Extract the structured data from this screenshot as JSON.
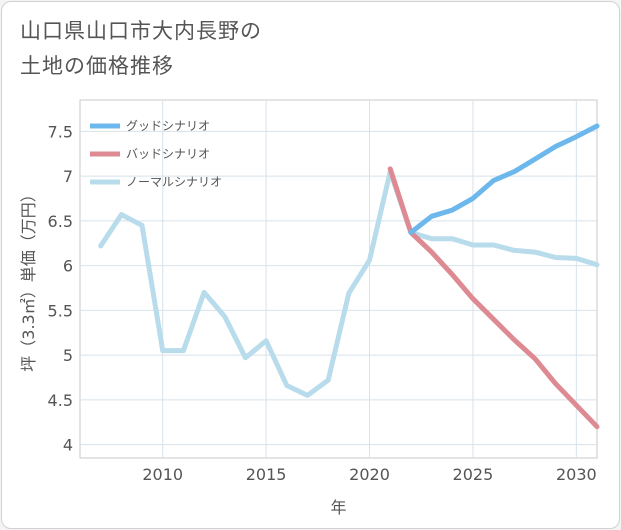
{
  "title_lines": [
    "山口県山口市大内長野の",
    "土地の価格推移"
  ],
  "chart_data": {
    "type": "line",
    "title": "山口県山口市大内長野の土地の価格推移",
    "xlabel": "年",
    "ylabel": "坪（3.3㎡）単価（万円）",
    "xlim": [
      2006,
      2031
    ],
    "ylim": [
      3.85,
      7.85
    ],
    "xticks": [
      2010,
      2015,
      2020,
      2025,
      2030
    ],
    "yticks": [
      4,
      4.5,
      5,
      5.5,
      6,
      6.5,
      7,
      7.5
    ],
    "grid": true,
    "legend_position": "top-left",
    "series": [
      {
        "name": "グッドシナリオ",
        "color": "#6cb8ec",
        "x": [
          2022,
          2023,
          2024,
          2025,
          2026,
          2027,
          2028,
          2029,
          2030,
          2031
        ],
        "values": [
          6.37,
          6.55,
          6.62,
          6.75,
          6.95,
          7.05,
          7.19,
          7.33,
          7.44,
          7.56
        ]
      },
      {
        "name": "バッドシナリオ",
        "color": "#dd8a92",
        "x": [
          2021,
          2022,
          2023,
          2024,
          2025,
          2026,
          2027,
          2028,
          2029,
          2030,
          2031
        ],
        "values": [
          7.08,
          6.37,
          6.15,
          5.9,
          5.63,
          5.4,
          5.17,
          4.96,
          4.68,
          4.44,
          4.2
        ]
      },
      {
        "name": "ノーマルシナリオ",
        "color": "#b8dcec",
        "x": [
          2007,
          2008,
          2009,
          2010,
          2011,
          2012,
          2013,
          2014,
          2015,
          2016,
          2017,
          2018,
          2019,
          2020,
          2021,
          2022,
          2023,
          2024,
          2025,
          2026,
          2027,
          2028,
          2029,
          2030,
          2031
        ],
        "values": [
          6.22,
          6.57,
          6.45,
          5.05,
          5.05,
          5.7,
          5.43,
          4.97,
          5.16,
          4.66,
          4.55,
          4.72,
          5.69,
          6.06,
          7.05,
          6.37,
          6.3,
          6.3,
          6.23,
          6.23,
          6.17,
          6.15,
          6.09,
          6.08,
          6.01
        ]
      }
    ]
  }
}
